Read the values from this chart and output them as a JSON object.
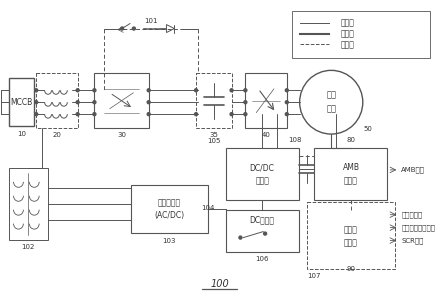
{
  "bg": "white",
  "lc": "#666666",
  "lc_thin": "#888888",
  "title": "100",
  "legend_items": [
    "电源线",
    "控制线",
    "通信线"
  ]
}
